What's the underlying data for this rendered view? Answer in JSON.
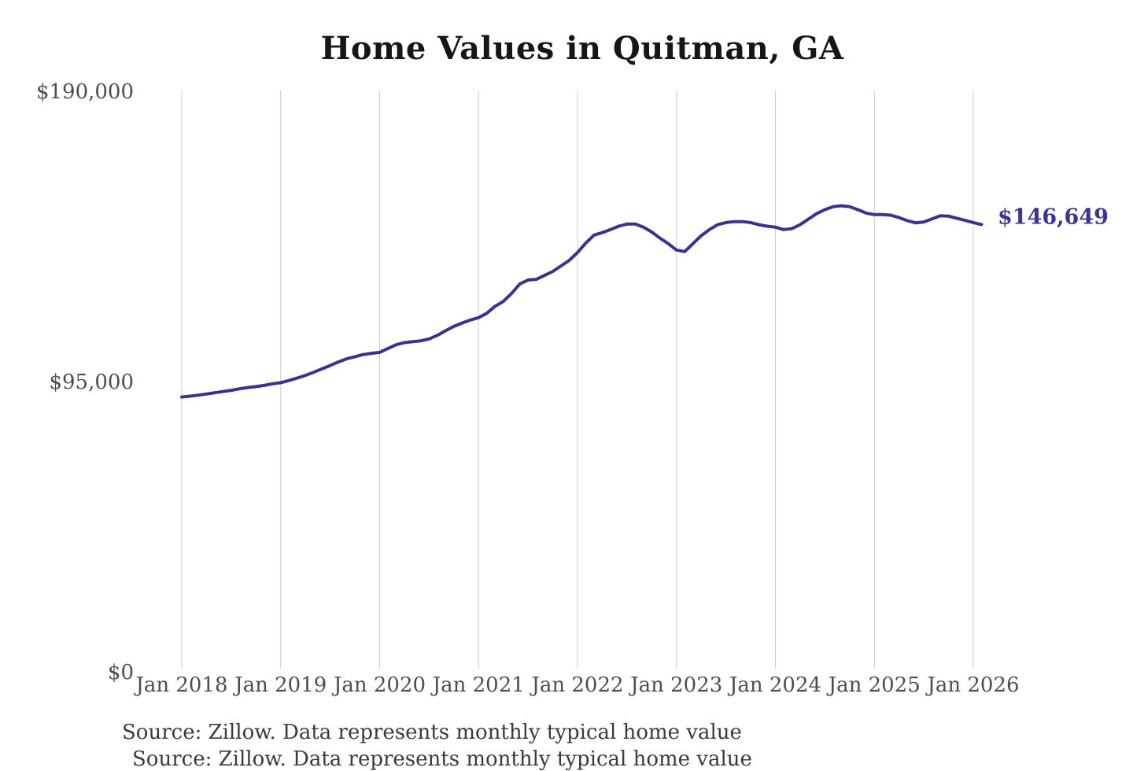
{
  "chart": {
    "title": "Home Values in Quitman, GA",
    "current_value_label": "$146,649",
    "source_note": "Source: Zillow. Data represents monthly typical home value",
    "colors": {
      "line": "#3b3191",
      "grid": "#cccccc",
      "tick_label": "#4d4d4d",
      "value_label": "#3b3494",
      "title": "#161616"
    }
  },
  "chart_data": {
    "type": "line",
    "title": "Home Values in Quitman, GA",
    "xlabel": "",
    "ylabel": "",
    "x_start": "2018-01",
    "x_interval": "monthly",
    "ylim": [
      0,
      190000
    ],
    "grid": "vertical-only",
    "legend": "none",
    "y_ticks": [
      {
        "label": "$190,000",
        "value": 190000
      },
      {
        "label": "$95,000",
        "value": 95000
      },
      {
        "label": "$0",
        "value": 0
      }
    ],
    "x_tick_labels": [
      "Jan 2018",
      "Jan 2019",
      "Jan 2020",
      "Jan 2021",
      "Jan 2022",
      "Jan 2023",
      "Jan 2024",
      "Jan 2025",
      "Jan 2026"
    ],
    "current_value": 146649,
    "annotation": "$146,649",
    "source": "Source: Zillow. Data represents monthly typical home value",
    "series": [
      {
        "name": "Monthly typical home value",
        "values": [
          90200,
          90500,
          90800,
          91200,
          91600,
          92000,
          92400,
          92900,
          93300,
          93600,
          94000,
          94500,
          94900,
          95600,
          96400,
          97300,
          98300,
          99400,
          100500,
          101700,
          102700,
          103400,
          104100,
          104500,
          104800,
          106100,
          107300,
          108000,
          108300,
          108600,
          109200,
          110400,
          111900,
          113300,
          114400,
          115400,
          116200,
          117600,
          119900,
          121500,
          124100,
          127200,
          128500,
          128700,
          130000,
          131300,
          133100,
          134900,
          137500,
          140600,
          143200,
          144000,
          145000,
          146100,
          146800,
          146800,
          145800,
          144200,
          142200,
          140400,
          138300,
          137800,
          140400,
          143000,
          145000,
          146600,
          147300,
          147600,
          147600,
          147300,
          146600,
          146100,
          145800,
          145000,
          145300,
          146600,
          148400,
          150200,
          151500,
          152500,
          152800,
          152500,
          151500,
          150400,
          149900,
          149900,
          149700,
          148900,
          147900,
          147200,
          147500,
          148500,
          149500,
          149400,
          148700,
          148000,
          147300,
          146649
        ]
      }
    ]
  }
}
